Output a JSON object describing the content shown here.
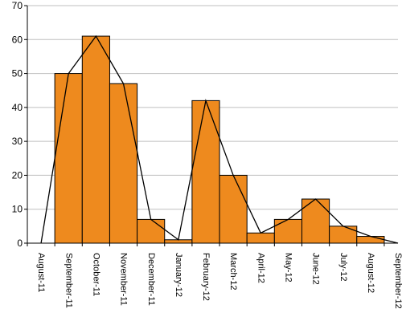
{
  "chart_data": {
    "type": "bar",
    "categories": [
      "August-11",
      "September-11",
      "October-11",
      "November-11",
      "December-11",
      "January-12",
      "February-12",
      "March-12",
      "April-12",
      "May-12",
      "June-12",
      "July-12",
      "August-12",
      "September-12"
    ],
    "values": [
      0,
      50,
      61,
      47,
      7,
      1,
      42,
      20,
      3,
      7,
      13,
      5,
      2,
      0
    ],
    "overlay_line": true,
    "title": "",
    "xlabel": "",
    "ylabel": "",
    "ylim": [
      0,
      70
    ],
    "yticks": [
      0,
      10,
      20,
      30,
      40,
      50,
      60,
      70
    ],
    "grid": true,
    "legend": "none",
    "colors": {
      "bar_fill": "#EE8A1E",
      "bar_stroke": "#000000",
      "line": "#000000",
      "grid": "#BFBFBF"
    }
  }
}
